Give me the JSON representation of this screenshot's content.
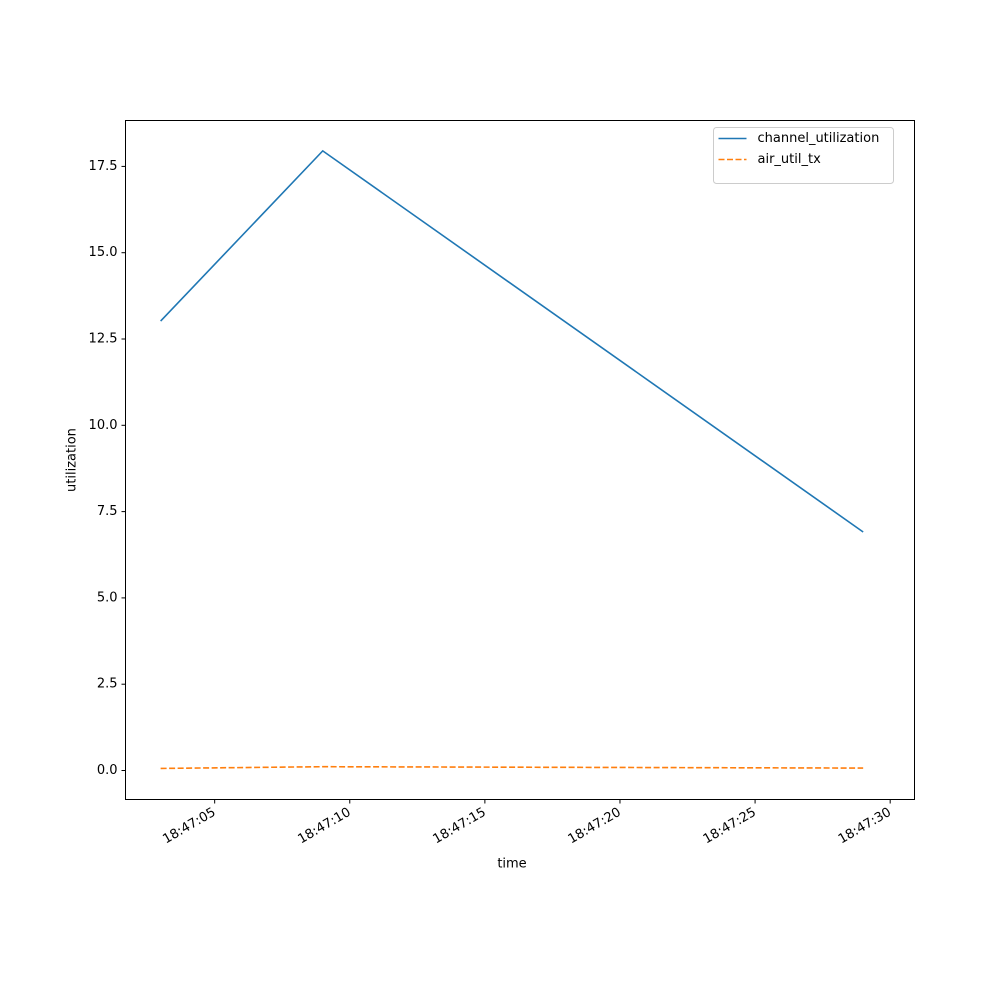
{
  "chart_data": {
    "type": "line",
    "x_label": "time",
    "y_label": "utilization",
    "x": [
      "18:47:03",
      "18:47:09",
      "18:47:29"
    ],
    "series": [
      {
        "name": "channel_utilization",
        "color": "#1f77b4",
        "linestyle": "solid",
        "values": [
          13.02,
          17.95,
          6.91
        ]
      },
      {
        "name": "air_util_tx",
        "color": "#ff7f0e",
        "linestyle": "dashed",
        "values": [
          0.06,
          0.11,
          0.07
        ]
      }
    ],
    "xlim": [
      "18:47:01.7",
      "18:47:30.9"
    ],
    "xticks": [
      "18:47:05",
      "18:47:10",
      "18:47:15",
      "18:47:20",
      "18:47:25",
      "18:47:30"
    ],
    "ylim": [
      -0.84,
      18.83
    ],
    "yticks": [
      {
        "value": 0,
        "label": "0.0"
      },
      {
        "value": 2.5,
        "label": "2.5"
      },
      {
        "value": 5,
        "label": "5.0"
      },
      {
        "value": 7.5,
        "label": "7.5"
      },
      {
        "value": 10,
        "label": "10.0"
      },
      {
        "value": 12.5,
        "label": "12.5"
      },
      {
        "value": 15,
        "label": "15.0"
      },
      {
        "value": 17.5,
        "label": "17.5"
      }
    ],
    "grid": false,
    "legend": "upper right"
  }
}
